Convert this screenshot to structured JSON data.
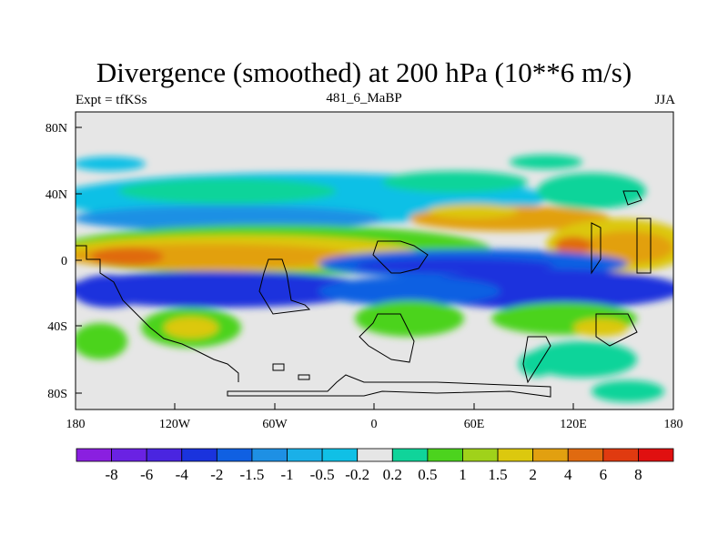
{
  "title": "Divergence (smoothed) at 200 hPa (10**6 m/s)",
  "subtitle_left": "Expt = tfKSs",
  "subtitle_center": "481_6_MaBP",
  "subtitle_right": "JJA",
  "y_ticks": [
    "80N",
    "40N",
    "0",
    "40S",
    "80S"
  ],
  "x_ticks": [
    "180",
    "120W",
    "60W",
    "0",
    "60E",
    "120E",
    "180"
  ],
  "colorbar_labels": [
    "-8",
    "-6",
    "-4",
    "-2",
    "-1.5",
    "-1",
    "-0.5",
    "-0.2",
    "0.2",
    "0.5",
    "1",
    "1.5",
    "2",
    "4",
    "6",
    "8"
  ],
  "colorbar_colors": [
    "#8a1fe0",
    "#6a22e3",
    "#4a25e0",
    "#1a33dd",
    "#1060e2",
    "#1e90e4",
    "#1ab0e8",
    "#10c0e6",
    "#e6e6e6",
    "#10d49a",
    "#4cd31e",
    "#a0d21a",
    "#dcc80e",
    "#e2a010",
    "#e06a10",
    "#e03a10",
    "#e01010"
  ]
}
